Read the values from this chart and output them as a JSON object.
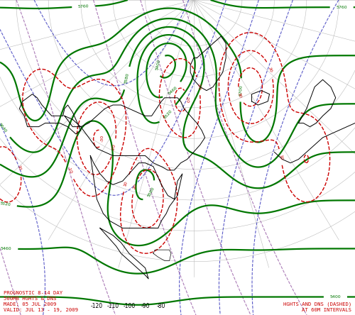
{
  "bottom_left_text": "PROGNOSTIC 8-14 DAY\n500MB HGHTS & DNS\nMADE: 05 JUL 2009\nVALID: JUL 13 - 19, 2009",
  "bottom_right_text": "HGHTS AND DNS (DASHED)\nAT 60M INTERVALS",
  "text_color": "#cc0000",
  "bg_color": "#ffffff",
  "green_color": "#007700",
  "red_dashed_color": "#cc0000",
  "blue_dashed_color": "#3333bb",
  "purple_dashed_color": "#884499",
  "grid_color": "#bbbbbb",
  "lon_labels": [
    -120,
    -110,
    -100,
    -90,
    -80
  ],
  "figsize": [
    5.0,
    4.44
  ],
  "dpi": 100
}
